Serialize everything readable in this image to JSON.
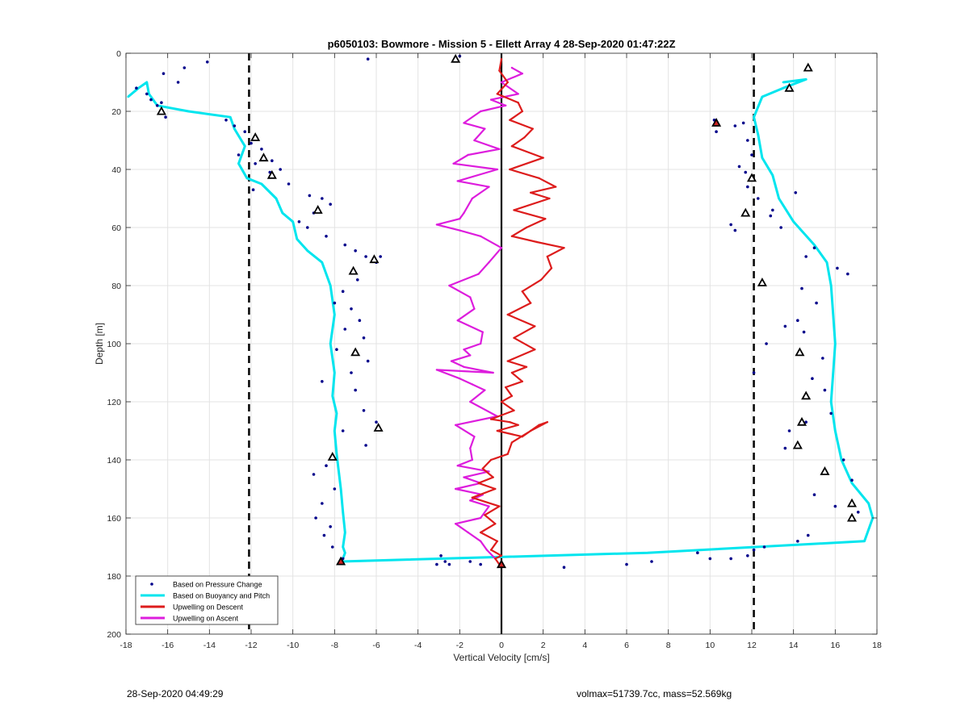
{
  "chart_data": {
    "type": "scatter",
    "title": "p6050103: Bowmore - Mission 5 - Ellett Array 4 28-Sep-2020 01:47:22Z",
    "xlabel": "Vertical Velocity [cm/s]",
    "ylabel": "Depth [m]",
    "xlim": [
      -18,
      18
    ],
    "ylim": [
      0,
      200
    ],
    "y_reversed": true,
    "grid": true,
    "legend_placement": "bottom-left",
    "xticks": [
      -18,
      -16,
      -14,
      -12,
      -10,
      -8,
      -6,
      -4,
      -2,
      0,
      2,
      4,
      6,
      8,
      10,
      12,
      14,
      16,
      18
    ],
    "yticks": [
      0,
      20,
      40,
      60,
      80,
      100,
      120,
      140,
      160,
      180,
      200
    ],
    "reference_lines": {
      "dashed_x": [
        -12.1,
        12.1
      ],
      "solid_x": [
        0
      ],
      "color": "#000000"
    },
    "series": [
      {
        "name": "Based on Pressure Change",
        "kind": "points",
        "color": "#00008b",
        "x": [
          -14.1,
          -15.2,
          -16.2,
          -15.5,
          -17.5,
          -17.0,
          -16.8,
          -16.5,
          -16.1,
          -16.3,
          -13.2,
          -12.8,
          -12.3,
          -12.0,
          -11.5,
          -12.6,
          -11.0,
          -11.8,
          -10.6,
          -11.1,
          -10.2,
          -11.9,
          -9.2,
          -8.6,
          -8.2,
          -9.0,
          -9.7,
          -9.3,
          -8.4,
          -7.5,
          -7.0,
          -6.5,
          -6.0,
          -5.8,
          -6.9,
          -7.6,
          -8.0,
          -7.2,
          -6.8,
          -7.5,
          -6.6,
          -7.9,
          -6.4,
          -7.2,
          -8.6,
          -7.0,
          -6.6,
          -6.0,
          -7.6,
          -6.5,
          -8.4,
          -9.0,
          -8.0,
          -8.6,
          -8.9,
          -8.2,
          -8.5,
          -8.1,
          -7.6,
          -6.4,
          -2.0,
          -2.9,
          -1.5,
          -2.5,
          -3.1,
          -2.7,
          -1.0,
          3.0,
          6.0,
          7.2,
          9.4,
          10.0,
          11.0,
          11.8,
          10.2,
          10.3,
          11.2,
          11.6,
          11.8,
          12.0,
          11.4,
          11.7,
          11.8,
          11.0,
          11.2,
          12.3,
          13.0,
          13.4,
          15.0,
          14.6,
          16.1,
          16.6,
          14.4,
          15.1,
          14.2,
          13.6,
          14.5,
          12.7,
          15.4,
          12.1,
          14.9,
          15.5,
          15.8,
          14.6,
          13.8,
          13.6,
          16.4,
          16.8,
          15.0,
          16.0,
          17.1,
          14.7,
          14.2,
          12.1,
          12.6,
          14.1,
          12.9
        ],
        "y": [
          3,
          5,
          7,
          10,
          12,
          14,
          16,
          18,
          22,
          17,
          23,
          25,
          27,
          31,
          33,
          35,
          37,
          38,
          40,
          41,
          45,
          47,
          49,
          50,
          52,
          55,
          58,
          60,
          63,
          66,
          68,
          70,
          72,
          70,
          78,
          82,
          86,
          88,
          92,
          95,
          98,
          102,
          106,
          110,
          113,
          116,
          123,
          127,
          130,
          135,
          142,
          145,
          150,
          155,
          160,
          163,
          166,
          170,
          174,
          2,
          1,
          173,
          175,
          176,
          176,
          175,
          176,
          177,
          176,
          175,
          172,
          174,
          174,
          173,
          23,
          27,
          25,
          24,
          30,
          35,
          39,
          41,
          46,
          59,
          61,
          50,
          54,
          60,
          67,
          70,
          74,
          76,
          81,
          86,
          92,
          94,
          96,
          100,
          105,
          110,
          112,
          116,
          124,
          127,
          130,
          136,
          140,
          147,
          152,
          156,
          158,
          166,
          168,
          171,
          170,
          48,
          56
        ]
      },
      {
        "name": "Based on Buoyancy and Pitch",
        "kind": "line",
        "color": "#00e5ee",
        "x": [
          -17.9,
          -17.4,
          -17.0,
          -16.9,
          -16.5,
          -15.0,
          -13.0,
          -12.8,
          -12.3,
          -12.6,
          -12.2,
          -11.5,
          -10.8,
          -10.5,
          -10.0,
          -9.8,
          -9.3,
          -8.6,
          -8.2,
          -8.0,
          -8.2,
          -8.0,
          -8.1,
          -7.9,
          -8.0,
          -7.9,
          -7.8,
          -7.7,
          -7.6,
          -7.5,
          -7.6,
          -7.5,
          -7.6,
          -7.7,
          7.0,
          17.4,
          17.8,
          17.6,
          16.8,
          16.3,
          16.0,
          15.8,
          15.9,
          16.0,
          15.9,
          15.8,
          15.6,
          15.0,
          14.0,
          13.3,
          13.0,
          12.5,
          12.3,
          12.1,
          12.5,
          13.5,
          14.6,
          13.5
        ],
        "y": [
          15,
          12,
          10,
          14,
          18,
          20,
          22,
          26,
          32,
          38,
          43,
          45,
          50,
          55,
          58,
          64,
          68,
          72,
          80,
          90,
          100,
          110,
          118,
          124,
          130,
          138,
          144,
          150,
          158,
          165,
          170,
          172,
          174,
          175,
          172,
          168,
          160,
          155,
          148,
          140,
          130,
          120,
          110,
          100,
          90,
          80,
          72,
          66,
          58,
          50,
          42,
          36,
          28,
          22,
          15,
          12,
          9,
          10
        ]
      },
      {
        "name": "Upwelling on Descent",
        "kind": "line",
        "color": "#dd1c1c",
        "x": [
          0.0,
          -0.1,
          0.3,
          -0.2,
          0.8,
          1.0,
          0.4,
          1.5,
          1.1,
          0.5,
          2.0,
          0.4,
          1.8,
          2.6,
          1.4,
          2.3,
          0.6,
          2.1,
          1.2,
          0.5,
          1.7,
          3.0,
          2.2,
          2.4,
          1.9,
          1.0,
          1.4,
          0.3,
          1.6,
          0.6,
          1.6,
          0.3,
          1.2,
          0.5,
          1.0,
          0.2,
          0.5,
          0.0,
          0.6,
          -0.5,
          0.4,
          0.8,
          -0.2,
          1.0,
          1.8,
          2.2,
          1.4,
          0.5,
          0.3,
          -0.5,
          -0.9,
          -0.4,
          -1.1,
          -0.3,
          -1.4,
          -0.1,
          -0.8,
          -0.3,
          -1.0,
          -0.2,
          -0.5,
          0.0,
          -0.3,
          -0.1
        ],
        "y": [
          2,
          6,
          10,
          14,
          17,
          20,
          23,
          26,
          29,
          32,
          36,
          40,
          43,
          46,
          48,
          50,
          54,
          57,
          60,
          63,
          65,
          67,
          70,
          74,
          78,
          82,
          86,
          90,
          94,
          98,
          102,
          106,
          108,
          110,
          113,
          115,
          118,
          120,
          123,
          126,
          127,
          128,
          130,
          132,
          128,
          127,
          130,
          134,
          138,
          140,
          143,
          146,
          148,
          150,
          153,
          156,
          159,
          162,
          165,
          168,
          171,
          173,
          174,
          176
        ]
      },
      {
        "name": "Upwelling on Ascent",
        "kind": "line",
        "color": "#dd1ddd",
        "x": [
          0.5,
          1.0,
          0.0,
          0.8,
          -0.5,
          0.2,
          -1.0,
          -1.8,
          -0.8,
          -1.3,
          -0.1,
          -1.6,
          -2.3,
          -0.2,
          -2.1,
          -0.6,
          -1.4,
          -1.8,
          -2.0,
          -3.1,
          -2.0,
          -1.0,
          0.0,
          -0.6,
          -1.1,
          -2.5,
          -1.5,
          -1.3,
          -2.1,
          -0.9,
          -1.0,
          -1.8,
          -1.5,
          -2.4,
          -1.8,
          -0.4,
          -3.1,
          -2.0,
          -1.4,
          -0.8,
          -1.5,
          -0.2,
          -2.2,
          -1.3,
          -1.5,
          -1.4,
          -2.1,
          -0.6,
          -1.8,
          -1.0,
          -2.2,
          -0.9,
          -1.5,
          -0.6,
          -1.0,
          -2.2,
          -1.6,
          -1.0,
          -0.7,
          -0.3
        ],
        "y": [
          5,
          7,
          10,
          14,
          16,
          18,
          20,
          24,
          26,
          30,
          33,
          35,
          38,
          40,
          44,
          46,
          50,
          55,
          57,
          59,
          61,
          63,
          67,
          72,
          76,
          80,
          84,
          88,
          92,
          96,
          100,
          102,
          104,
          106,
          108,
          110,
          109,
          112,
          114,
          116,
          120,
          125,
          128,
          132,
          136,
          140,
          142,
          144,
          146,
          148,
          150,
          152,
          154,
          156,
          160,
          162,
          165,
          168,
          171,
          174
        ]
      }
    ],
    "markers": [
      {
        "x": -16.3,
        "y": 20,
        "color": "#000000"
      },
      {
        "x": -11.8,
        "y": 29,
        "color": "#000000"
      },
      {
        "x": -11.4,
        "y": 36,
        "color": "#000000"
      },
      {
        "x": -11.0,
        "y": 42,
        "color": "#000000"
      },
      {
        "x": -8.8,
        "y": 54,
        "color": "#000000"
      },
      {
        "x": -6.1,
        "y": 71,
        "color": "#000000"
      },
      {
        "x": -7.1,
        "y": 75,
        "color": "#000000"
      },
      {
        "x": -7.0,
        "y": 103,
        "color": "#000000"
      },
      {
        "x": -5.9,
        "y": 129,
        "color": "#000000"
      },
      {
        "x": -8.1,
        "y": 139,
        "color": "#000000"
      },
      {
        "x": -7.7,
        "y": 175,
        "color": "#8b0000"
      },
      {
        "x": -2.2,
        "y": 2,
        "color": "#000000"
      },
      {
        "x": 0.0,
        "y": 176,
        "color": "#8b0000"
      },
      {
        "x": 10.3,
        "y": 24,
        "color": "#8b0000"
      },
      {
        "x": 11.7,
        "y": 55,
        "color": "#000000"
      },
      {
        "x": 12.0,
        "y": 43,
        "color": "#000000"
      },
      {
        "x": 12.5,
        "y": 79,
        "color": "#000000"
      },
      {
        "x": 14.7,
        "y": 5,
        "color": "#000000"
      },
      {
        "x": 13.8,
        "y": 12,
        "color": "#000000"
      },
      {
        "x": 14.3,
        "y": 103,
        "color": "#000000"
      },
      {
        "x": 14.6,
        "y": 118,
        "color": "#000000"
      },
      {
        "x": 14.4,
        "y": 127,
        "color": "#000000"
      },
      {
        "x": 14.2,
        "y": 135,
        "color": "#000000"
      },
      {
        "x": 15.5,
        "y": 144,
        "color": "#000000"
      },
      {
        "x": 16.8,
        "y": 155,
        "color": "#000000"
      },
      {
        "x": 16.8,
        "y": 160,
        "color": "#000000"
      }
    ]
  },
  "footer": {
    "timestamp": "28-Sep-2020 04:49:29",
    "params": "volmax=51739.7cc, mass=52.569kg"
  }
}
